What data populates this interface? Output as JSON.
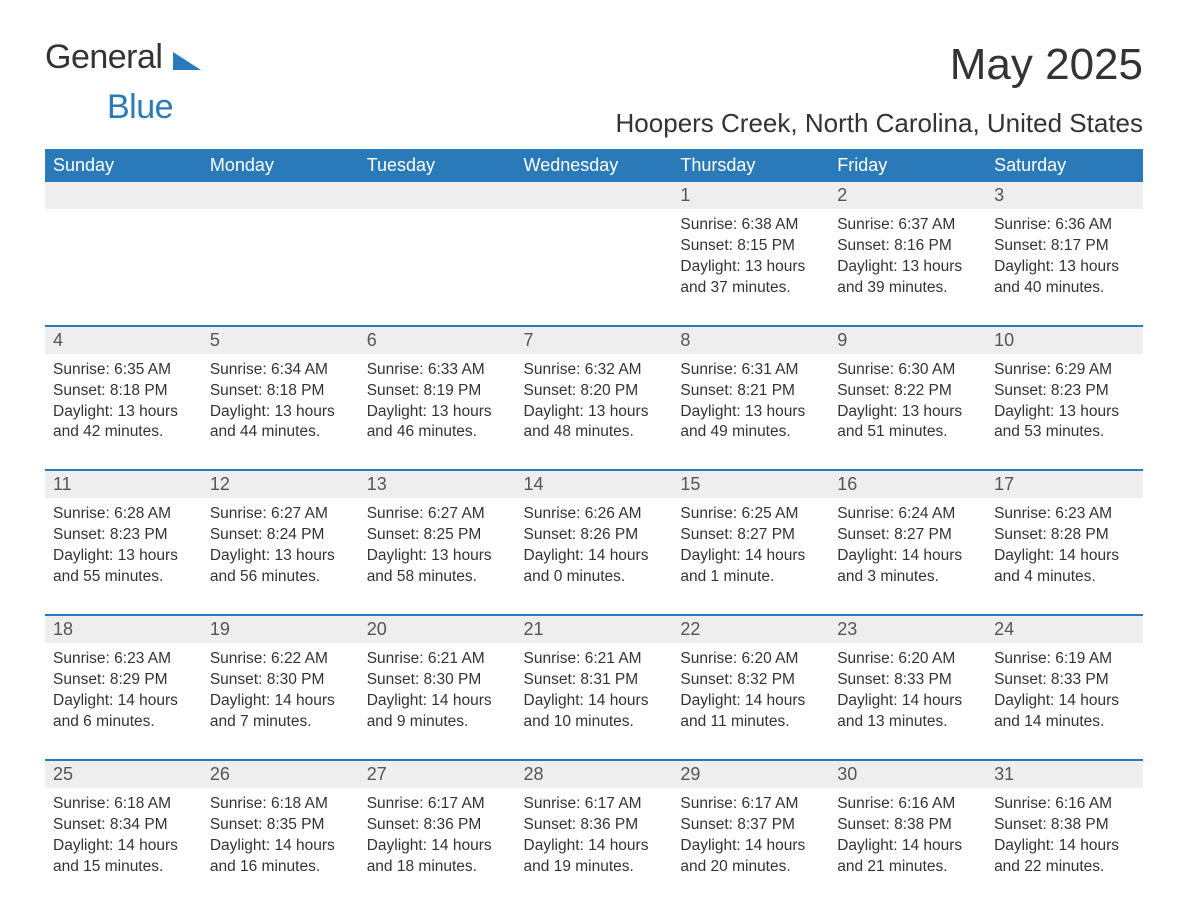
{
  "logo": {
    "general": "General",
    "blue": "Blue"
  },
  "title": "May 2025",
  "subtitle": "Hoopers Creek, North Carolina, United States",
  "colors": {
    "header_bg": "#2a7ab9",
    "header_text": "#ffffff",
    "daynum_bg": "#eeeeee",
    "border": "#2a7ab9",
    "text": "#333333",
    "logo_blue": "#2a7ab9"
  },
  "day_headers": [
    "Sunday",
    "Monday",
    "Tuesday",
    "Wednesday",
    "Thursday",
    "Friday",
    "Saturday"
  ],
  "weeks": [
    [
      null,
      null,
      null,
      null,
      {
        "n": "1",
        "sunrise": "Sunrise: 6:38 AM",
        "sunset": "Sunset: 8:15 PM",
        "daylight": "Daylight: 13 hours and 37 minutes."
      },
      {
        "n": "2",
        "sunrise": "Sunrise: 6:37 AM",
        "sunset": "Sunset: 8:16 PM",
        "daylight": "Daylight: 13 hours and 39 minutes."
      },
      {
        "n": "3",
        "sunrise": "Sunrise: 6:36 AM",
        "sunset": "Sunset: 8:17 PM",
        "daylight": "Daylight: 13 hours and 40 minutes."
      }
    ],
    [
      {
        "n": "4",
        "sunrise": "Sunrise: 6:35 AM",
        "sunset": "Sunset: 8:18 PM",
        "daylight": "Daylight: 13 hours and 42 minutes."
      },
      {
        "n": "5",
        "sunrise": "Sunrise: 6:34 AM",
        "sunset": "Sunset: 8:18 PM",
        "daylight": "Daylight: 13 hours and 44 minutes."
      },
      {
        "n": "6",
        "sunrise": "Sunrise: 6:33 AM",
        "sunset": "Sunset: 8:19 PM",
        "daylight": "Daylight: 13 hours and 46 minutes."
      },
      {
        "n": "7",
        "sunrise": "Sunrise: 6:32 AM",
        "sunset": "Sunset: 8:20 PM",
        "daylight": "Daylight: 13 hours and 48 minutes."
      },
      {
        "n": "8",
        "sunrise": "Sunrise: 6:31 AM",
        "sunset": "Sunset: 8:21 PM",
        "daylight": "Daylight: 13 hours and 49 minutes."
      },
      {
        "n": "9",
        "sunrise": "Sunrise: 6:30 AM",
        "sunset": "Sunset: 8:22 PM",
        "daylight": "Daylight: 13 hours and 51 minutes."
      },
      {
        "n": "10",
        "sunrise": "Sunrise: 6:29 AM",
        "sunset": "Sunset: 8:23 PM",
        "daylight": "Daylight: 13 hours and 53 minutes."
      }
    ],
    [
      {
        "n": "11",
        "sunrise": "Sunrise: 6:28 AM",
        "sunset": "Sunset: 8:23 PM",
        "daylight": "Daylight: 13 hours and 55 minutes."
      },
      {
        "n": "12",
        "sunrise": "Sunrise: 6:27 AM",
        "sunset": "Sunset: 8:24 PM",
        "daylight": "Daylight: 13 hours and 56 minutes."
      },
      {
        "n": "13",
        "sunrise": "Sunrise: 6:27 AM",
        "sunset": "Sunset: 8:25 PM",
        "daylight": "Daylight: 13 hours and 58 minutes."
      },
      {
        "n": "14",
        "sunrise": "Sunrise: 6:26 AM",
        "sunset": "Sunset: 8:26 PM",
        "daylight": "Daylight: 14 hours and 0 minutes."
      },
      {
        "n": "15",
        "sunrise": "Sunrise: 6:25 AM",
        "sunset": "Sunset: 8:27 PM",
        "daylight": "Daylight: 14 hours and 1 minute."
      },
      {
        "n": "16",
        "sunrise": "Sunrise: 6:24 AM",
        "sunset": "Sunset: 8:27 PM",
        "daylight": "Daylight: 14 hours and 3 minutes."
      },
      {
        "n": "17",
        "sunrise": "Sunrise: 6:23 AM",
        "sunset": "Sunset: 8:28 PM",
        "daylight": "Daylight: 14 hours and 4 minutes."
      }
    ],
    [
      {
        "n": "18",
        "sunrise": "Sunrise: 6:23 AM",
        "sunset": "Sunset: 8:29 PM",
        "daylight": "Daylight: 14 hours and 6 minutes."
      },
      {
        "n": "19",
        "sunrise": "Sunrise: 6:22 AM",
        "sunset": "Sunset: 8:30 PM",
        "daylight": "Daylight: 14 hours and 7 minutes."
      },
      {
        "n": "20",
        "sunrise": "Sunrise: 6:21 AM",
        "sunset": "Sunset: 8:30 PM",
        "daylight": "Daylight: 14 hours and 9 minutes."
      },
      {
        "n": "21",
        "sunrise": "Sunrise: 6:21 AM",
        "sunset": "Sunset: 8:31 PM",
        "daylight": "Daylight: 14 hours and 10 minutes."
      },
      {
        "n": "22",
        "sunrise": "Sunrise: 6:20 AM",
        "sunset": "Sunset: 8:32 PM",
        "daylight": "Daylight: 14 hours and 11 minutes."
      },
      {
        "n": "23",
        "sunrise": "Sunrise: 6:20 AM",
        "sunset": "Sunset: 8:33 PM",
        "daylight": "Daylight: 14 hours and 13 minutes."
      },
      {
        "n": "24",
        "sunrise": "Sunrise: 6:19 AM",
        "sunset": "Sunset: 8:33 PM",
        "daylight": "Daylight: 14 hours and 14 minutes."
      }
    ],
    [
      {
        "n": "25",
        "sunrise": "Sunrise: 6:18 AM",
        "sunset": "Sunset: 8:34 PM",
        "daylight": "Daylight: 14 hours and 15 minutes."
      },
      {
        "n": "26",
        "sunrise": "Sunrise: 6:18 AM",
        "sunset": "Sunset: 8:35 PM",
        "daylight": "Daylight: 14 hours and 16 minutes."
      },
      {
        "n": "27",
        "sunrise": "Sunrise: 6:17 AM",
        "sunset": "Sunset: 8:36 PM",
        "daylight": "Daylight: 14 hours and 18 minutes."
      },
      {
        "n": "28",
        "sunrise": "Sunrise: 6:17 AM",
        "sunset": "Sunset: 8:36 PM",
        "daylight": "Daylight: 14 hours and 19 minutes."
      },
      {
        "n": "29",
        "sunrise": "Sunrise: 6:17 AM",
        "sunset": "Sunset: 8:37 PM",
        "daylight": "Daylight: 14 hours and 20 minutes."
      },
      {
        "n": "30",
        "sunrise": "Sunrise: 6:16 AM",
        "sunset": "Sunset: 8:38 PM",
        "daylight": "Daylight: 14 hours and 21 minutes."
      },
      {
        "n": "31",
        "sunrise": "Sunrise: 6:16 AM",
        "sunset": "Sunset: 8:38 PM",
        "daylight": "Daylight: 14 hours and 22 minutes."
      }
    ]
  ]
}
